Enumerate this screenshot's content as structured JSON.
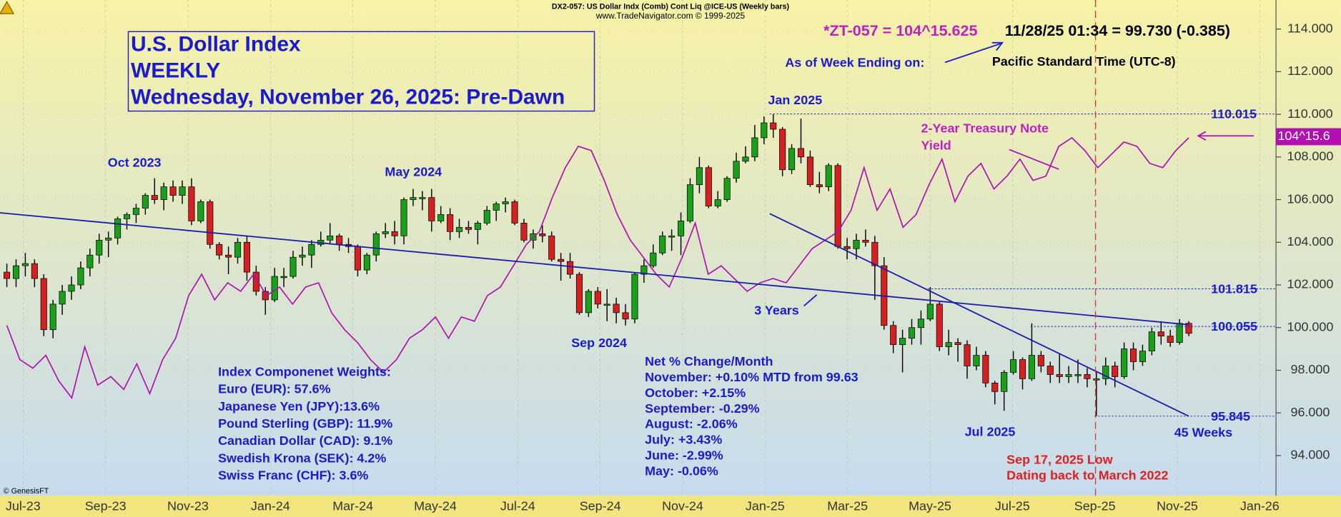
{
  "chart_data": {
    "type": "candlestick",
    "header": "DX2-057:  US Dollar Indx (Comb) Cont Liq @ICE-US  (Weekly bars)",
    "subheader": "www.TradeNavigator.com © 1999-2025",
    "title_lines": [
      "U.S. Dollar Index",
      "WEEKLY",
      "Wednesday, November 26, 2025: Pre-Dawn"
    ],
    "quote_symbol": "*ZT-057 = 104^15.625",
    "quote_value": "11/28/25 01:34 = 99.730 (-0.385)",
    "as_of": "As of Week Ending on:",
    "timezone": "Pacific Standard Time (UTC-8)",
    "copyright": "© GenesisFT",
    "up_color": "#1a9f1a",
    "down_color": "#d42020",
    "ylim": [
      92.12,
      115.36
    ],
    "yticks": [
      {
        "value": 94,
        "label": "94.000"
      },
      {
        "value": 96,
        "label": "96.000"
      },
      {
        "value": 98,
        "label": "98.000"
      },
      {
        "value": 100,
        "label": "100.000"
      },
      {
        "value": 102,
        "label": "102.000"
      },
      {
        "value": 104,
        "label": "104.000"
      },
      {
        "value": 106,
        "label": "106.000"
      },
      {
        "value": 108,
        "label": "108.000"
      },
      {
        "value": 110,
        "label": "110.000"
      },
      {
        "value": 112,
        "label": "112.000"
      },
      {
        "value": 114,
        "label": "114.000"
      }
    ],
    "xlabels": [
      "Jul-23",
      "Sep-23",
      "Nov-23",
      "Jan-24",
      "Mar-24",
      "May-24",
      "Jul-24",
      "Sep-24",
      "Nov-24",
      "Jan-25",
      "Mar-25",
      "May-25",
      "Jul-25",
      "Sep-25",
      "Nov-25",
      "Jan-26"
    ],
    "candles": [
      [
        102.6,
        103.0,
        101.9,
        102.3
      ],
      [
        102.3,
        103.2,
        101.9,
        102.9
      ],
      [
        102.9,
        103.5,
        102.4,
        103.0
      ],
      [
        103.0,
        103.2,
        101.9,
        102.3
      ],
      [
        102.3,
        102.5,
        99.6,
        99.9
      ],
      [
        99.9,
        101.3,
        99.5,
        101.1
      ],
      [
        101.1,
        102.0,
        100.6,
        101.7
      ],
      [
        101.7,
        102.4,
        101.3,
        102.0
      ],
      [
        102.0,
        103.1,
        101.8,
        102.8
      ],
      [
        102.8,
        103.7,
        102.4,
        103.4
      ],
      [
        103.4,
        104.4,
        103.0,
        104.1
      ],
      [
        104.1,
        104.5,
        103.3,
        104.2
      ],
      [
        104.2,
        105.2,
        103.9,
        105.1
      ],
      [
        105.1,
        105.4,
        104.6,
        105.3
      ],
      [
        105.3,
        105.8,
        104.9,
        105.6
      ],
      [
        105.6,
        106.3,
        105.3,
        106.2
      ],
      [
        106.2,
        107.0,
        105.8,
        106.0
      ],
      [
        106.0,
        106.8,
        105.5,
        106.6
      ],
      [
        106.6,
        106.9,
        105.9,
        106.2
      ],
      [
        106.2,
        106.9,
        105.8,
        106.6
      ],
      [
        106.6,
        107.0,
        104.8,
        105.0
      ],
      [
        105.0,
        106.0,
        104.9,
        105.9
      ],
      [
        105.9,
        106.0,
        103.7,
        103.9
      ],
      [
        103.9,
        104.0,
        103.2,
        103.4
      ],
      [
        103.4,
        103.8,
        102.5,
        103.3
      ],
      [
        103.3,
        104.2,
        103.0,
        104.0
      ],
      [
        104.0,
        104.3,
        102.2,
        102.6
      ],
      [
        102.6,
        102.9,
        101.5,
        101.7
      ],
      [
        101.7,
        101.9,
        100.6,
        101.3
      ],
      [
        101.3,
        102.8,
        101.2,
        102.4
      ],
      [
        102.4,
        102.8,
        101.9,
        102.4
      ],
      [
        102.4,
        103.6,
        102.3,
        103.3
      ],
      [
        103.3,
        103.8,
        102.9,
        103.4
      ],
      [
        103.4,
        104.1,
        102.8,
        103.9
      ],
      [
        103.9,
        104.5,
        103.8,
        104.1
      ],
      [
        104.1,
        104.9,
        103.9,
        104.3
      ],
      [
        104.3,
        104.4,
        103.6,
        103.9
      ],
      [
        103.9,
        104.2,
        103.5,
        103.8
      ],
      [
        103.8,
        103.9,
        102.4,
        102.7
      ],
      [
        102.7,
        103.5,
        102.5,
        103.4
      ],
      [
        103.4,
        104.5,
        103.1,
        104.4
      ],
      [
        104.4,
        104.9,
        104.2,
        104.5
      ],
      [
        104.5,
        105.0,
        103.9,
        104.3
      ],
      [
        104.3,
        106.1,
        103.9,
        106.0
      ],
      [
        106.0,
        106.5,
        105.7,
        106.1
      ],
      [
        106.1,
        106.4,
        105.5,
        106.1
      ],
      [
        106.1,
        106.5,
        104.5,
        105.0
      ],
      [
        105.0,
        105.7,
        104.9,
        105.3
      ],
      [
        105.3,
        105.6,
        104.1,
        104.5
      ],
      [
        104.5,
        105.1,
        104.2,
        104.7
      ],
      [
        104.7,
        105.0,
        104.4,
        104.6
      ],
      [
        104.6,
        105.0,
        103.9,
        104.9
      ],
      [
        104.9,
        105.7,
        104.8,
        105.5
      ],
      [
        105.5,
        105.9,
        105.0,
        105.8
      ],
      [
        105.8,
        106.1,
        105.4,
        105.9
      ],
      [
        105.9,
        106.0,
        104.8,
        104.9
      ],
      [
        104.9,
        105.1,
        104.0,
        104.1
      ],
      [
        104.1,
        104.6,
        103.7,
        104.4
      ],
      [
        104.4,
        104.8,
        104.0,
        104.3
      ],
      [
        104.3,
        104.5,
        103.1,
        103.2
      ],
      [
        103.2,
        103.5,
        102.2,
        103.1
      ],
      [
        103.1,
        103.5,
        102.3,
        102.5
      ],
      [
        102.5,
        102.6,
        100.6,
        100.7
      ],
      [
        100.7,
        101.8,
        100.5,
        101.7
      ],
      [
        101.7,
        101.9,
        100.9,
        101.1
      ],
      [
        101.1,
        101.8,
        100.3,
        101.1
      ],
      [
        101.1,
        101.4,
        100.2,
        100.7
      ],
      [
        100.7,
        101.1,
        100.1,
        100.4
      ],
      [
        100.4,
        102.6,
        100.2,
        102.5
      ],
      [
        102.5,
        103.2,
        102.1,
        102.9
      ],
      [
        102.9,
        103.9,
        102.8,
        103.5
      ],
      [
        103.5,
        104.5,
        103.4,
        104.3
      ],
      [
        104.3,
        104.6,
        103.6,
        104.3
      ],
      [
        104.3,
        105.4,
        103.4,
        105.0
      ],
      [
        105.0,
        107.0,
        104.9,
        106.7
      ],
      [
        106.7,
        108.0,
        106.3,
        107.5
      ],
      [
        107.5,
        107.6,
        105.6,
        105.7
      ],
      [
        105.7,
        106.4,
        105.6,
        106.0
      ],
      [
        106.0,
        107.1,
        105.9,
        107.0
      ],
      [
        107.0,
        108.2,
        106.8,
        107.8
      ],
      [
        107.8,
        108.5,
        107.7,
        108.0
      ],
      [
        108.0,
        109.5,
        107.8,
        108.9
      ],
      [
        108.9,
        109.9,
        108.6,
        109.6
      ],
      [
        109.6,
        110.0,
        108.9,
        109.3
      ],
      [
        109.3,
        109.4,
        107.1,
        107.4
      ],
      [
        107.4,
        108.6,
        107.2,
        108.4
      ],
      [
        108.4,
        109.8,
        107.7,
        108.0
      ],
      [
        108.0,
        108.3,
        106.6,
        106.7
      ],
      [
        106.7,
        107.3,
        106.3,
        106.6
      ],
      [
        106.6,
        107.7,
        106.4,
        107.6
      ],
      [
        107.6,
        107.7,
        103.7,
        103.8
      ],
      [
        103.8,
        104.2,
        103.2,
        103.7
      ],
      [
        103.7,
        104.4,
        103.2,
        104.1
      ],
      [
        104.1,
        104.6,
        103.8,
        104.0
      ],
      [
        104.0,
        104.3,
        101.3,
        102.9
      ],
      [
        102.9,
        103.3,
        99.9,
        100.1
      ],
      [
        100.1,
        100.3,
        98.8,
        99.2
      ],
      [
        99.2,
        99.9,
        97.9,
        99.5
      ],
      [
        99.5,
        100.4,
        99.2,
        100.0
      ],
      [
        100.0,
        100.8,
        99.2,
        100.4
      ],
      [
        100.4,
        101.9,
        100.3,
        101.1
      ],
      [
        101.1,
        101.2,
        98.9,
        99.1
      ],
      [
        99.1,
        99.9,
        98.7,
        99.3
      ],
      [
        99.3,
        99.5,
        98.4,
        99.2
      ],
      [
        99.2,
        99.4,
        97.6,
        98.2
      ],
      [
        98.2,
        99.1,
        98.0,
        98.7
      ],
      [
        98.7,
        98.9,
        97.2,
        97.4
      ],
      [
        97.4,
        97.5,
        96.4,
        97.0
      ],
      [
        97.0,
        98.0,
        96.1,
        97.9
      ],
      [
        97.9,
        98.9,
        97.8,
        98.5
      ],
      [
        98.5,
        98.6,
        97.1,
        97.6
      ],
      [
        97.6,
        100.2,
        97.5,
        98.7
      ],
      [
        98.7,
        98.9,
        97.9,
        98.2
      ],
      [
        98.2,
        98.4,
        97.4,
        97.8
      ],
      [
        97.8,
        98.8,
        97.4,
        97.7
      ],
      [
        97.7,
        98.2,
        97.4,
        97.8
      ],
      [
        97.8,
        98.5,
        97.4,
        97.8
      ],
      [
        97.8,
        98.1,
        97.2,
        97.6
      ],
      [
        97.6,
        97.9,
        95.85,
        97.6
      ],
      [
        97.6,
        98.6,
        97.3,
        98.2
      ],
      [
        98.2,
        98.4,
        97.2,
        97.7
      ],
      [
        97.7,
        99.3,
        97.6,
        99.0
      ],
      [
        99.0,
        99.3,
        98.0,
        98.4
      ],
      [
        98.4,
        99.2,
        98.2,
        98.9
      ],
      [
        98.9,
        100.0,
        98.7,
        99.8
      ],
      [
        99.8,
        100.3,
        99.2,
        99.6
      ],
      [
        99.6,
        99.9,
        99.1,
        99.3
      ],
      [
        99.3,
        100.4,
        99.2,
        100.2
      ],
      [
        100.2,
        100.3,
        99.6,
        99.73
      ]
    ],
    "overlay": {
      "color": "#b010b0",
      "last_label": "104^15.6",
      "values": [
        100.1,
        98.5,
        98.1,
        98.7,
        97.5,
        96.7,
        99.1,
        97.3,
        97.7,
        97.1,
        98.3,
        96.9,
        98.5,
        99.5,
        101.5,
        102.5,
        101.3,
        102.1,
        101.7,
        102.5,
        101.5,
        101.9,
        101.1,
        101.9,
        102.1,
        100.7,
        99.9,
        99.3,
        98.5,
        97.9,
        98.5,
        99.5,
        99.9,
        100.5,
        99.5,
        100.5,
        100.3,
        101.5,
        101.9,
        102.9,
        103.9,
        104.5,
        106.1,
        107.5,
        108.5,
        108.3,
        106.9,
        105.3,
        104.1,
        103.3,
        102.5,
        101.9,
        103.3,
        104.9,
        102.5,
        102.9,
        102.3,
        101.7,
        102.1,
        102.3,
        102.1,
        102.9,
        103.7,
        104.1,
        104.5,
        105.5,
        107.5,
        105.5,
        106.5,
        104.7,
        105.3,
        106.7,
        107.9,
        105.9,
        107.1,
        107.7,
        106.5,
        107.1,
        107.9,
        106.9,
        107.1,
        108.5,
        108.9,
        108.3,
        107.5,
        108.1,
        108.7,
        108.5,
        107.7,
        107.5,
        108.3,
        108.9
      ]
    },
    "levels": [
      110.015,
      101.815,
      100.055,
      95.845
    ],
    "labels": {
      "oct23": "Oct 2023",
      "may24": "May 2024",
      "sep24": "Sep 2024",
      "jan25": "Jan 2025",
      "jul25": "Jul 2025",
      "years": "3 Years",
      "weeks": "45 Weeks",
      "yield1": "2-Year Treasury Note",
      "yield2": "Yield",
      "low1": "Sep 17, 2025 Low",
      "low2": "Dating back to March 2022"
    },
    "weights": [
      "Index Componenet Weights:",
      "Euro (EUR): 57.6%",
      "Japanese Yen (JPY):13.6%",
      "Pound Sterling (GBP): 11.9%",
      "Canadian Dollar (CAD): 9.1%",
      "Swedish Krona (SEK): 4.2%",
      "Swiss Franc (CHF): 3.6%"
    ],
    "net_change": [
      "Net % Change/Month",
      "November: +0.10% MTD from 99.63",
      "October: +2.15%",
      "September: -0.29%",
      "August: -2.06%",
      "July: +3.43%",
      "June: -2.99%",
      "May: -0.06%"
    ]
  }
}
